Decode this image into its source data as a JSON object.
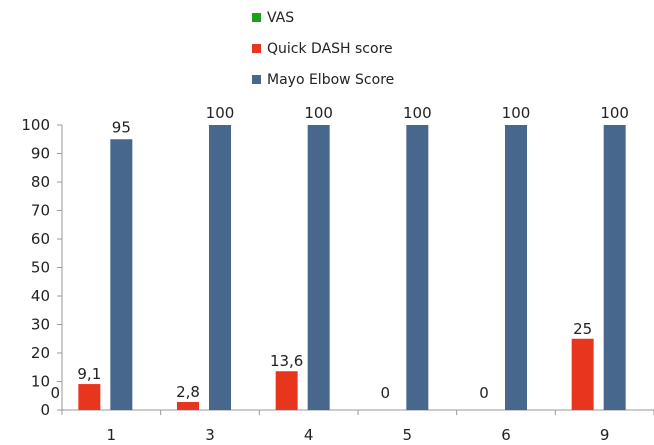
{
  "chart_data": {
    "type": "bar",
    "categories": [
      "1",
      "3",
      "4",
      "5",
      "6",
      "9"
    ],
    "series": [
      {
        "name": "VAS",
        "color": "#1aa31a",
        "values": [
          0,
          0,
          0,
          0,
          0,
          0
        ]
      },
      {
        "name": "Quick DASH score",
        "color": "#e8361e",
        "values": [
          9.1,
          2.8,
          13.6,
          0,
          0,
          25
        ]
      },
      {
        "name": "Mayo Elbow Score",
        "color": "#47688c",
        "values": [
          95,
          100,
          100,
          100,
          100,
          100
        ]
      }
    ],
    "data_labels": [
      {
        "category": "1",
        "texts": [
          "0",
          "9,1",
          "95"
        ]
      },
      {
        "category": "3",
        "texts": [
          "",
          "2,8",
          "100"
        ]
      },
      {
        "category": "4",
        "texts": [
          "",
          "13,6",
          "100"
        ]
      },
      {
        "category": "5",
        "texts": [
          "",
          "0",
          "100"
        ]
      },
      {
        "category": "6",
        "texts": [
          "",
          "0",
          "100"
        ]
      },
      {
        "category": "9",
        "texts": [
          "",
          "25",
          "100"
        ]
      }
    ],
    "ylim": [
      0,
      100
    ],
    "yticks": [
      "0",
      "10",
      "20",
      "30",
      "40",
      "50",
      "60",
      "70",
      "80",
      "90",
      "100"
    ],
    "title": "",
    "xlabel": "",
    "ylabel": "",
    "legend_position": "top-center",
    "grid": false
  }
}
